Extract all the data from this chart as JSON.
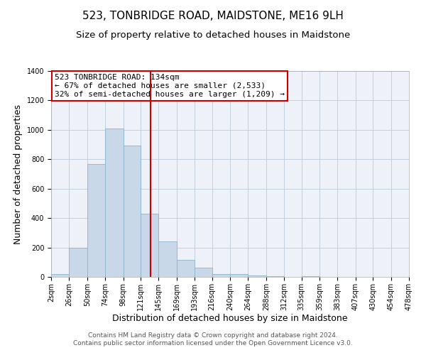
{
  "title": "523, TONBRIDGE ROAD, MAIDSTONE, ME16 9LH",
  "subtitle": "Size of property relative to detached houses in Maidstone",
  "xlabel": "Distribution of detached houses by size in Maidstone",
  "ylabel": "Number of detached properties",
  "bar_color": "#c8d8e8",
  "bar_edge_color": "#8ab4cc",
  "grid_color": "#c0cfe0",
  "background_color": "#eef2f8",
  "vline_x": 134,
  "vline_color": "#cc0000",
  "annotation_lines": [
    "523 TONBRIDGE ROAD: 134sqm",
    "← 67% of detached houses are smaller (2,533)",
    "32% of semi-detached houses are larger (1,209) →"
  ],
  "annotation_box_edge": "#cc0000",
  "bin_edges": [
    2,
    26,
    50,
    74,
    98,
    121,
    145,
    169,
    193,
    216,
    240,
    264,
    288,
    312,
    335,
    359,
    383,
    407,
    430,
    454,
    478
  ],
  "bar_heights": [
    20,
    200,
    770,
    1010,
    895,
    430,
    240,
    115,
    65,
    20,
    20,
    10,
    5,
    0,
    5,
    0,
    0,
    0,
    0,
    0
  ],
  "tick_labels": [
    "2sqm",
    "26sqm",
    "50sqm",
    "74sqm",
    "98sqm",
    "121sqm",
    "145sqm",
    "169sqm",
    "193sqm",
    "216sqm",
    "240sqm",
    "264sqm",
    "288sqm",
    "312sqm",
    "335sqm",
    "359sqm",
    "383sqm",
    "407sqm",
    "430sqm",
    "454sqm",
    "478sqm"
  ],
  "ylim": [
    0,
    1400
  ],
  "yticks": [
    0,
    200,
    400,
    600,
    800,
    1000,
    1200,
    1400
  ],
  "footer_lines": [
    "Contains HM Land Registry data © Crown copyright and database right 2024.",
    "Contains public sector information licensed under the Open Government Licence v3.0."
  ],
  "title_fontsize": 11,
  "subtitle_fontsize": 9.5,
  "axis_label_fontsize": 9,
  "tick_fontsize": 7,
  "annotation_fontsize": 8,
  "footer_fontsize": 6.5
}
